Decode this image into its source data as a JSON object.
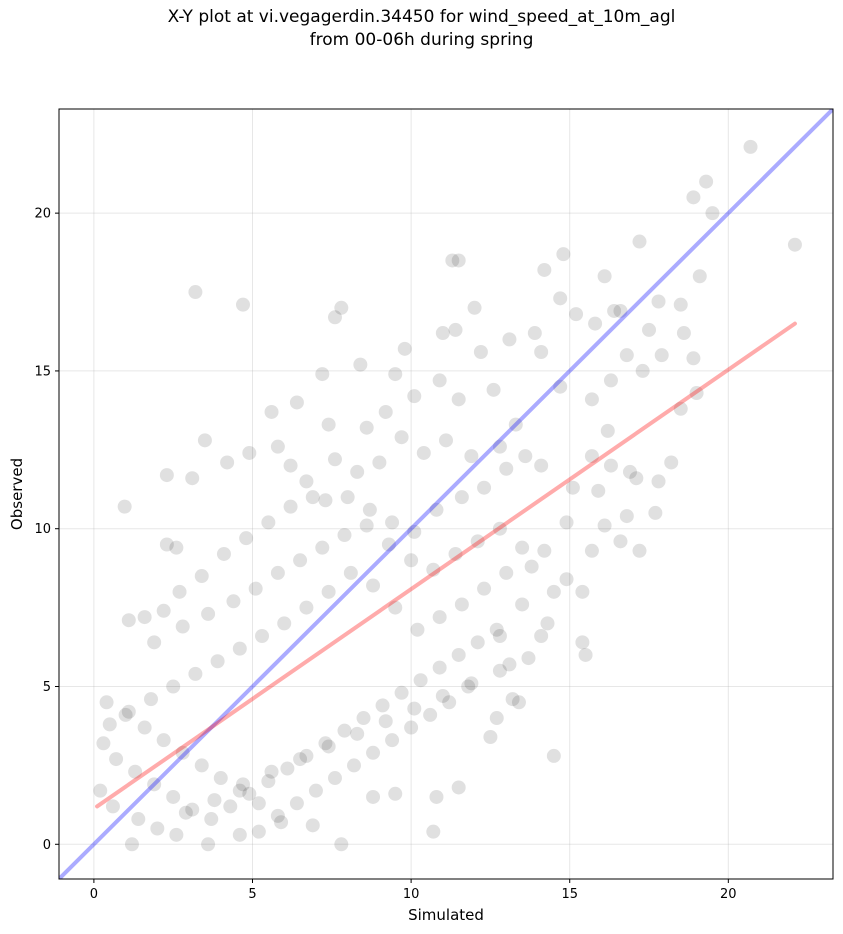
{
  "chart_data": {
    "type": "scatter",
    "title_line1": "X-Y plot at vi.vegagerdin.34450 for wind_speed_at_10m_agl",
    "title_line2": "from 00-06h during spring",
    "xlabel": "Simulated",
    "ylabel": "Observed",
    "xlim": [
      -1.1,
      23.3
    ],
    "ylim": [
      -1.1,
      23.3
    ],
    "xticks": [
      0,
      5,
      10,
      15,
      20
    ],
    "yticks": [
      0,
      5,
      10,
      15,
      20
    ],
    "grid": true,
    "point_color": "#000000",
    "identity_line": {
      "color": "#0000ff",
      "from": [
        -1.1,
        -1.1
      ],
      "to": [
        23.3,
        23.3
      ]
    },
    "fit_line": {
      "color": "#ff0000",
      "from": [
        0.1,
        1.2
      ],
      "to": [
        22.1,
        16.5
      ]
    },
    "points": [
      [
        3.2,
        17.5
      ],
      [
        4.7,
        17.1
      ],
      [
        0.97,
        10.7
      ],
      [
        2.3,
        11.7
      ],
      [
        3.1,
        11.6
      ],
      [
        2.3,
        9.5
      ],
      [
        2.6,
        9.4
      ],
      [
        20.7,
        22.1
      ],
      [
        22.1,
        19.0
      ],
      [
        19.3,
        21.0
      ],
      [
        18.9,
        20.5
      ],
      [
        19.5,
        20.0
      ],
      [
        19.1,
        18.0
      ],
      [
        17.2,
        19.1
      ],
      [
        11.3,
        18.5
      ],
      [
        11.5,
        18.5
      ],
      [
        14.2,
        18.2
      ],
      [
        14.8,
        18.7
      ],
      [
        16.1,
        18.0
      ],
      [
        7.8,
        17.0
      ],
      [
        7.6,
        16.7
      ],
      [
        12.0,
        17.0
      ],
      [
        17.8,
        17.2
      ],
      [
        18.5,
        17.1
      ],
      [
        14.7,
        17.3
      ],
      [
        15.2,
        16.8
      ],
      [
        15.8,
        16.5
      ],
      [
        16.4,
        16.9
      ],
      [
        16.6,
        16.9
      ],
      [
        17.5,
        16.3
      ],
      [
        18.6,
        16.2
      ],
      [
        18.9,
        15.4
      ],
      [
        17.9,
        15.5
      ],
      [
        16.8,
        15.5
      ],
      [
        17.3,
        15.0
      ],
      [
        16.3,
        14.7
      ],
      [
        14.7,
        14.5
      ],
      [
        19.0,
        14.3
      ],
      [
        18.5,
        13.8
      ],
      [
        15.7,
        14.1
      ],
      [
        16.2,
        13.1
      ],
      [
        15.7,
        12.3
      ],
      [
        16.3,
        12.0
      ],
      [
        17.1,
        11.6
      ],
      [
        17.8,
        11.5
      ],
      [
        18.2,
        12.1
      ],
      [
        16.9,
        11.8
      ],
      [
        15.9,
        11.2
      ],
      [
        15.1,
        11.3
      ],
      [
        14.9,
        10.2
      ],
      [
        16.1,
        10.1
      ],
      [
        16.8,
        10.4
      ],
      [
        17.7,
        10.5
      ],
      [
        16.6,
        9.6
      ],
      [
        17.2,
        9.3
      ],
      [
        15.7,
        9.3
      ],
      [
        14.9,
        8.4
      ],
      [
        15.4,
        8.0
      ],
      [
        14.5,
        8.0
      ],
      [
        13.8,
        8.8
      ],
      [
        14.2,
        9.3
      ],
      [
        14.3,
        7.0
      ],
      [
        14.1,
        6.6
      ],
      [
        13.5,
        7.6
      ],
      [
        15.4,
        6.4
      ],
      [
        15.5,
        6.0
      ],
      [
        14.5,
        2.8
      ],
      [
        13.2,
        4.6
      ],
      [
        13.4,
        4.5
      ],
      [
        12.7,
        4.0
      ],
      [
        12.5,
        3.4
      ],
      [
        13.1,
        5.7
      ],
      [
        12.8,
        6.6
      ],
      [
        11.5,
        1.8
      ],
      [
        10.8,
        1.5
      ],
      [
        10.7,
        0.4
      ],
      [
        9.5,
        1.6
      ],
      [
        8.8,
        1.5
      ],
      [
        7.8,
        0.0
      ],
      [
        6.9,
        0.6
      ],
      [
        5.9,
        0.7
      ],
      [
        5.2,
        0.4
      ],
      [
        4.6,
        0.3
      ],
      [
        3.6,
        0.0
      ],
      [
        2.6,
        0.3
      ],
      [
        1.2,
        0.0
      ],
      [
        9.8,
        15.7
      ],
      [
        9.5,
        14.9
      ],
      [
        8.4,
        15.2
      ],
      [
        7.2,
        14.9
      ],
      [
        11.0,
        16.2
      ],
      [
        11.4,
        16.3
      ],
      [
        12.2,
        15.6
      ],
      [
        13.1,
        16.0
      ],
      [
        13.9,
        16.2
      ],
      [
        14.1,
        15.6
      ],
      [
        12.6,
        14.4
      ],
      [
        11.5,
        14.1
      ],
      [
        10.9,
        14.7
      ],
      [
        10.1,
        14.2
      ],
      [
        9.2,
        13.7
      ],
      [
        8.6,
        13.2
      ],
      [
        7.4,
        13.3
      ],
      [
        6.4,
        14.0
      ],
      [
        5.6,
        13.7
      ],
      [
        4.2,
        12.1
      ],
      [
        3.5,
        12.8
      ],
      [
        4.9,
        12.4
      ],
      [
        5.8,
        12.6
      ],
      [
        6.2,
        12.0
      ],
      [
        6.7,
        11.5
      ],
      [
        7.3,
        10.9
      ],
      [
        8.0,
        11.0
      ],
      [
        8.7,
        10.6
      ],
      [
        9.4,
        10.2
      ],
      [
        10.1,
        9.9
      ],
      [
        10.8,
        10.6
      ],
      [
        11.6,
        11.0
      ],
      [
        12.3,
        11.3
      ],
      [
        13.0,
        11.9
      ],
      [
        13.6,
        12.3
      ],
      [
        14.1,
        12.0
      ],
      [
        13.3,
        13.3
      ],
      [
        12.8,
        12.6
      ],
      [
        11.9,
        12.3
      ],
      [
        11.1,
        12.8
      ],
      [
        10.4,
        12.4
      ],
      [
        9.7,
        12.9
      ],
      [
        9.0,
        12.1
      ],
      [
        8.3,
        11.8
      ],
      [
        7.6,
        12.2
      ],
      [
        6.9,
        11.0
      ],
      [
        6.2,
        10.7
      ],
      [
        5.5,
        10.2
      ],
      [
        4.8,
        9.7
      ],
      [
        4.1,
        9.2
      ],
      [
        3.4,
        8.5
      ],
      [
        2.7,
        8.0
      ],
      [
        2.2,
        7.4
      ],
      [
        1.6,
        7.2
      ],
      [
        1.1,
        7.1
      ],
      [
        1.9,
        6.4
      ],
      [
        2.8,
        6.9
      ],
      [
        3.6,
        7.3
      ],
      [
        4.4,
        7.7
      ],
      [
        5.1,
        8.1
      ],
      [
        5.8,
        8.6
      ],
      [
        6.5,
        9.0
      ],
      [
        7.2,
        9.4
      ],
      [
        7.9,
        9.8
      ],
      [
        8.6,
        10.1
      ],
      [
        9.3,
        9.5
      ],
      [
        10.0,
        9.0
      ],
      [
        10.7,
        8.7
      ],
      [
        11.4,
        9.2
      ],
      [
        12.1,
        9.6
      ],
      [
        12.8,
        10.0
      ],
      [
        13.5,
        9.4
      ],
      [
        13.0,
        8.6
      ],
      [
        12.3,
        8.1
      ],
      [
        11.6,
        7.6
      ],
      [
        10.9,
        7.2
      ],
      [
        10.2,
        6.8
      ],
      [
        9.5,
        7.5
      ],
      [
        8.8,
        8.2
      ],
      [
        8.1,
        8.6
      ],
      [
        7.4,
        8.0
      ],
      [
        6.7,
        7.5
      ],
      [
        6.0,
        7.0
      ],
      [
        5.3,
        6.6
      ],
      [
        4.6,
        6.2
      ],
      [
        3.9,
        5.8
      ],
      [
        3.2,
        5.4
      ],
      [
        2.5,
        5.0
      ],
      [
        1.8,
        4.6
      ],
      [
        1.1,
        4.2
      ],
      [
        0.5,
        3.8
      ],
      [
        0.3,
        3.2
      ],
      [
        0.7,
        2.7
      ],
      [
        1.3,
        2.3
      ],
      [
        1.9,
        1.9
      ],
      [
        2.5,
        1.5
      ],
      [
        3.1,
        1.1
      ],
      [
        3.7,
        0.8
      ],
      [
        4.3,
        1.2
      ],
      [
        4.9,
        1.6
      ],
      [
        5.5,
        2.0
      ],
      [
        6.1,
        2.4
      ],
      [
        6.7,
        2.8
      ],
      [
        7.3,
        3.2
      ],
      [
        7.9,
        3.6
      ],
      [
        8.5,
        4.0
      ],
      [
        9.1,
        4.4
      ],
      [
        9.7,
        4.8
      ],
      [
        10.3,
        5.2
      ],
      [
        10.9,
        5.6
      ],
      [
        11.5,
        6.0
      ],
      [
        12.1,
        6.4
      ],
      [
        12.7,
        6.8
      ],
      [
        11.8,
        5.0
      ],
      [
        11.2,
        4.5
      ],
      [
        10.6,
        4.1
      ],
      [
        10.0,
        3.7
      ],
      [
        9.4,
        3.3
      ],
      [
        8.8,
        2.9
      ],
      [
        8.2,
        2.5
      ],
      [
        7.6,
        2.1
      ],
      [
        7.0,
        1.7
      ],
      [
        6.4,
        1.3
      ],
      [
        5.8,
        0.9
      ],
      [
        5.2,
        1.3
      ],
      [
        4.6,
        1.7
      ],
      [
        4.0,
        2.1
      ],
      [
        3.4,
        2.5
      ],
      [
        2.8,
        2.9
      ],
      [
        2.2,
        3.3
      ],
      [
        1.6,
        3.7
      ],
      [
        1.0,
        4.1
      ],
      [
        0.4,
        4.5
      ],
      [
        0.2,
        1.7
      ],
      [
        0.6,
        1.2
      ],
      [
        1.4,
        0.8
      ],
      [
        2.0,
        0.5
      ],
      [
        2.9,
        1.0
      ],
      [
        3.8,
        1.4
      ],
      [
        4.7,
        1.9
      ],
      [
        5.6,
        2.3
      ],
      [
        6.5,
        2.7
      ],
      [
        7.4,
        3.1
      ],
      [
        8.3,
        3.5
      ],
      [
        9.2,
        3.9
      ],
      [
        10.1,
        4.3
      ],
      [
        11.0,
        4.7
      ],
      [
        11.9,
        5.1
      ],
      [
        12.8,
        5.5
      ],
      [
        13.7,
        5.9
      ]
    ]
  }
}
